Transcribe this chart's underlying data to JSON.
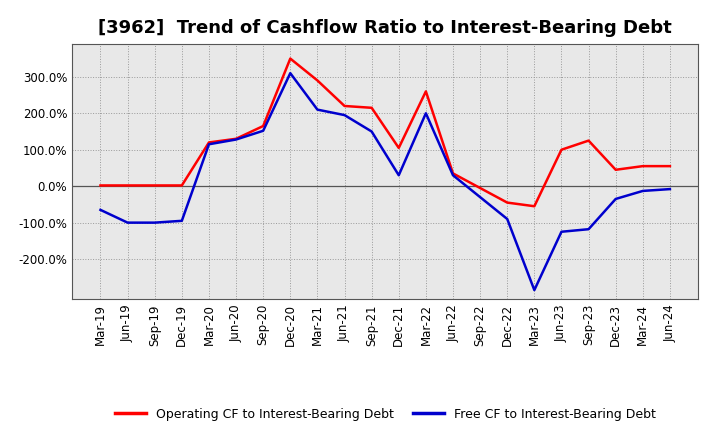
{
  "title": "[3962]  Trend of Cashflow Ratio to Interest-Bearing Debt",
  "x_labels": [
    "Mar-19",
    "Jun-19",
    "Sep-19",
    "Dec-19",
    "Mar-20",
    "Jun-20",
    "Sep-20",
    "Dec-20",
    "Mar-21",
    "Jun-21",
    "Sep-21",
    "Dec-21",
    "Mar-22",
    "Jun-22",
    "Sep-22",
    "Dec-22",
    "Mar-23",
    "Jun-23",
    "Sep-23",
    "Dec-23",
    "Mar-24",
    "Jun-24"
  ],
  "operating_cf": [
    2,
    2,
    2,
    2,
    120,
    130,
    165,
    350,
    290,
    220,
    215,
    105,
    260,
    35,
    -5,
    -45,
    -55,
    100,
    125,
    45,
    55,
    55
  ],
  "free_cf": [
    -65,
    -100,
    -100,
    -95,
    115,
    128,
    152,
    310,
    210,
    195,
    150,
    30,
    200,
    30,
    -30,
    -90,
    -285,
    -125,
    -118,
    -35,
    -13,
    -8
  ],
  "operating_color": "#ff0000",
  "free_color": "#0000cd",
  "background_color": "#ffffff",
  "plot_bg_color": "#e8e8e8",
  "grid_color": "#999999",
  "border_color": "#555555",
  "ylim": [
    -310,
    390
  ],
  "yticks": [
    -200,
    -100,
    0,
    100,
    200,
    300
  ],
  "legend_operating": "Operating CF to Interest-Bearing Debt",
  "legend_free": "Free CF to Interest-Bearing Debt",
  "title_fontsize": 13,
  "axis_fontsize": 8.5,
  "legend_fontsize": 9,
  "linewidth": 1.8
}
